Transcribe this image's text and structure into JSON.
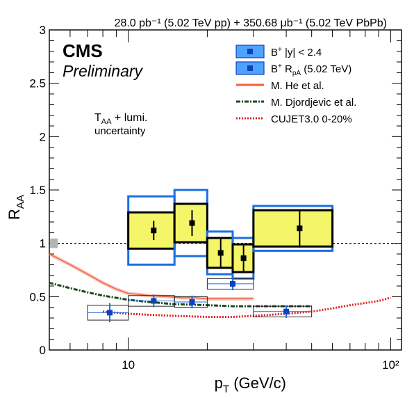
{
  "chart_data": {
    "type": "scatter",
    "header": "28.0 pb⁻¹ (5.02 TeV pp) + 350.68 μb⁻¹ (5.02 TeV PbPb)",
    "experiment": "CMS",
    "status": "Preliminary",
    "xlabel": "p_T (GeV/c)",
    "ylabel": "R_AA",
    "xscale": "log",
    "xlim": [
      5,
      110
    ],
    "ylim": [
      0,
      3
    ],
    "x_tick_labels": [
      "10",
      "10²"
    ],
    "y_tick_labels": [
      "0",
      "0.5",
      "1",
      "1.5",
      "2",
      "2.5",
      "3"
    ],
    "reference_line": 1.0,
    "annotation": {
      "line1": "T_AA + lumi.",
      "line2": "uncertainty"
    },
    "norm_uncertainty": {
      "y": 1.0,
      "half_height": 0.045
    },
    "legend": {
      "position": "top-right",
      "entries": [
        {
          "label": "B⁺ |y| < 2.4",
          "style": "box-dark"
        },
        {
          "label": "B⁺ R_pA (5.02 TeV)",
          "style": "box-light"
        },
        {
          "label": "M. He et al.",
          "style": "line-orange"
        },
        {
          "label": "M. Djordjevic et al.",
          "style": "line-green"
        },
        {
          "label": "CUJET3.0 0-20%",
          "style": "line-red"
        }
      ]
    },
    "series": [
      {
        "name": "B⁺ |y| < 2.4",
        "color": "#000000",
        "marker_color": "#000000",
        "fill_color": "#f5f56a",
        "outer_box_color": "#1a6fe0",
        "points": [
          {
            "x": 12.5,
            "y": 1.12,
            "x_low": 10,
            "x_high": 15,
            "stat": 0.09,
            "syst": 0.17,
            "syst_total": 0.32
          },
          {
            "x": 17.5,
            "y": 1.19,
            "x_low": 15,
            "x_high": 20,
            "stat": 0.12,
            "syst": 0.18,
            "syst_total": 0.31
          },
          {
            "x": 22.5,
            "y": 0.91,
            "x_low": 20,
            "x_high": 25,
            "stat": 0.14,
            "syst": 0.14,
            "syst_total": 0.2
          },
          {
            "x": 27.5,
            "y": 0.86,
            "x_low": 25,
            "x_high": 30,
            "stat": 0.12,
            "syst": 0.13,
            "syst_total": 0.19
          },
          {
            "x": 45,
            "y": 1.14,
            "x_low": 30,
            "x_high": 60,
            "stat": 0.18,
            "syst": 0.17,
            "syst_total": 0.21
          }
        ]
      },
      {
        "name": "B⁺ R_pA (5.02 TeV)",
        "color": "#1a6fe0",
        "marker_color": "#1240b8",
        "fill_color": "#d8e8ff",
        "points": [
          {
            "x": 8.5,
            "y": 0.35,
            "x_low": 7,
            "x_high": 10,
            "stat": 0.09,
            "syst": 0.07
          },
          {
            "x": 12.5,
            "y": 0.46,
            "x_low": 10,
            "x_high": 15,
            "stat": 0.06,
            "syst": 0.05
          },
          {
            "x": 17.5,
            "y": 0.45,
            "x_low": 15,
            "x_high": 20,
            "stat": 0.06,
            "syst": 0.05
          },
          {
            "x": 25,
            "y": 0.62,
            "x_low": 20,
            "x_high": 30,
            "stat": 0.06,
            "syst": 0.05
          },
          {
            "x": 40,
            "y": 0.36,
            "x_low": 30,
            "x_high": 50,
            "stat": 0.06,
            "syst": 0.05
          }
        ]
      }
    ],
    "curves": [
      {
        "name": "M. He et al.",
        "color": "#f06040",
        "band": true,
        "x": [
          5,
          6,
          7,
          8,
          9,
          10,
          11,
          12,
          14,
          16,
          18,
          20,
          22,
          25,
          30
        ],
        "y": [
          0.9,
          0.8,
          0.71,
          0.63,
          0.57,
          0.53,
          0.52,
          0.51,
          0.5,
          0.49,
          0.49,
          0.48,
          0.48,
          0.48,
          0.48
        ]
      },
      {
        "name": "M. Djordjevic et al.",
        "color": "#1a4a1a",
        "dash": "6 2 2 2",
        "x": [
          5,
          6,
          7,
          8,
          10,
          12,
          15,
          20,
          25,
          30,
          40,
          50
        ],
        "y": [
          0.63,
          0.58,
          0.54,
          0.51,
          0.47,
          0.45,
          0.43,
          0.42,
          0.41,
          0.41,
          0.41,
          0.41
        ]
      },
      {
        "name": "CUJET3.0 0-20%",
        "color": "#e02020",
        "dash": "2 2",
        "x": [
          8,
          10,
          12,
          15,
          20,
          25,
          30,
          40,
          50,
          60,
          70,
          80,
          90,
          100
        ],
        "y": [
          0.36,
          0.34,
          0.33,
          0.32,
          0.31,
          0.31,
          0.32,
          0.34,
          0.36,
          0.39,
          0.42,
          0.44,
          0.46,
          0.49
        ]
      }
    ]
  }
}
